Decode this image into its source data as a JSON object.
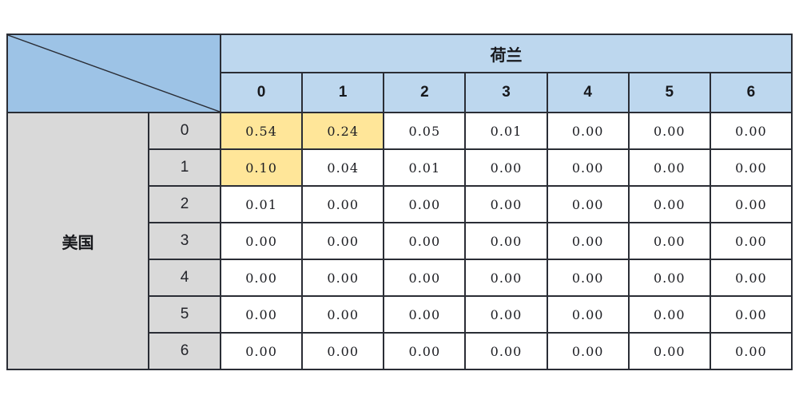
{
  "table": {
    "column_group": {
      "label": "荷兰"
    },
    "row_group": {
      "label": "美国"
    },
    "column_headers": [
      "0",
      "1",
      "2",
      "3",
      "4",
      "5",
      "6"
    ],
    "row_headers": [
      "0",
      "1",
      "2",
      "3",
      "4",
      "5",
      "6"
    ],
    "cells": [
      [
        "0.54",
        "0.24",
        "0.05",
        "0.01",
        "0.00",
        "0.00",
        "0.00"
      ],
      [
        "0.10",
        "0.04",
        "0.01",
        "0.00",
        "0.00",
        "0.00",
        "0.00"
      ],
      [
        "0.01",
        "0.00",
        "0.00",
        "0.00",
        "0.00",
        "0.00",
        "0.00"
      ],
      [
        "0.00",
        "0.00",
        "0.00",
        "0.00",
        "0.00",
        "0.00",
        "0.00"
      ],
      [
        "0.00",
        "0.00",
        "0.00",
        "0.00",
        "0.00",
        "0.00",
        "0.00"
      ],
      [
        "0.00",
        "0.00",
        "0.00",
        "0.00",
        "0.00",
        "0.00",
        "0.00"
      ],
      [
        "0.00",
        "0.00",
        "0.00",
        "0.00",
        "0.00",
        "0.00",
        "0.00"
      ]
    ],
    "highlighted": [
      [
        0,
        0
      ],
      [
        0,
        1
      ],
      [
        1,
        0
      ]
    ],
    "colors": {
      "corner_bg": "#9DC3E6",
      "header_bg": "#BDD7EE",
      "row_header_bg": "#D9D9D9",
      "highlight_bg": "#FFE699",
      "cell_bg": "#FFFFFF",
      "border": "#2A2D35",
      "page_bg": "#FFFFFF"
    }
  },
  "chart_data": {
    "type": "table",
    "title": "",
    "column_group_label": "荷兰",
    "row_group_label": "美国",
    "columns": [
      "0",
      "1",
      "2",
      "3",
      "4",
      "5",
      "6"
    ],
    "rows": [
      "0",
      "1",
      "2",
      "3",
      "4",
      "5",
      "6"
    ],
    "values": [
      [
        0.54,
        0.24,
        0.05,
        0.01,
        0.0,
        0.0,
        0.0
      ],
      [
        0.1,
        0.04,
        0.01,
        0.0,
        0.0,
        0.0,
        0.0
      ],
      [
        0.01,
        0.0,
        0.0,
        0.0,
        0.0,
        0.0,
        0.0
      ],
      [
        0.0,
        0.0,
        0.0,
        0.0,
        0.0,
        0.0,
        0.0
      ],
      [
        0.0,
        0.0,
        0.0,
        0.0,
        0.0,
        0.0,
        0.0
      ],
      [
        0.0,
        0.0,
        0.0,
        0.0,
        0.0,
        0.0,
        0.0
      ],
      [
        0.0,
        0.0,
        0.0,
        0.0,
        0.0,
        0.0,
        0.0
      ]
    ],
    "highlighted_cells": [
      [
        0,
        0
      ],
      [
        0,
        1
      ],
      [
        1,
        0
      ]
    ],
    "legend_position": "none",
    "grid": true
  }
}
